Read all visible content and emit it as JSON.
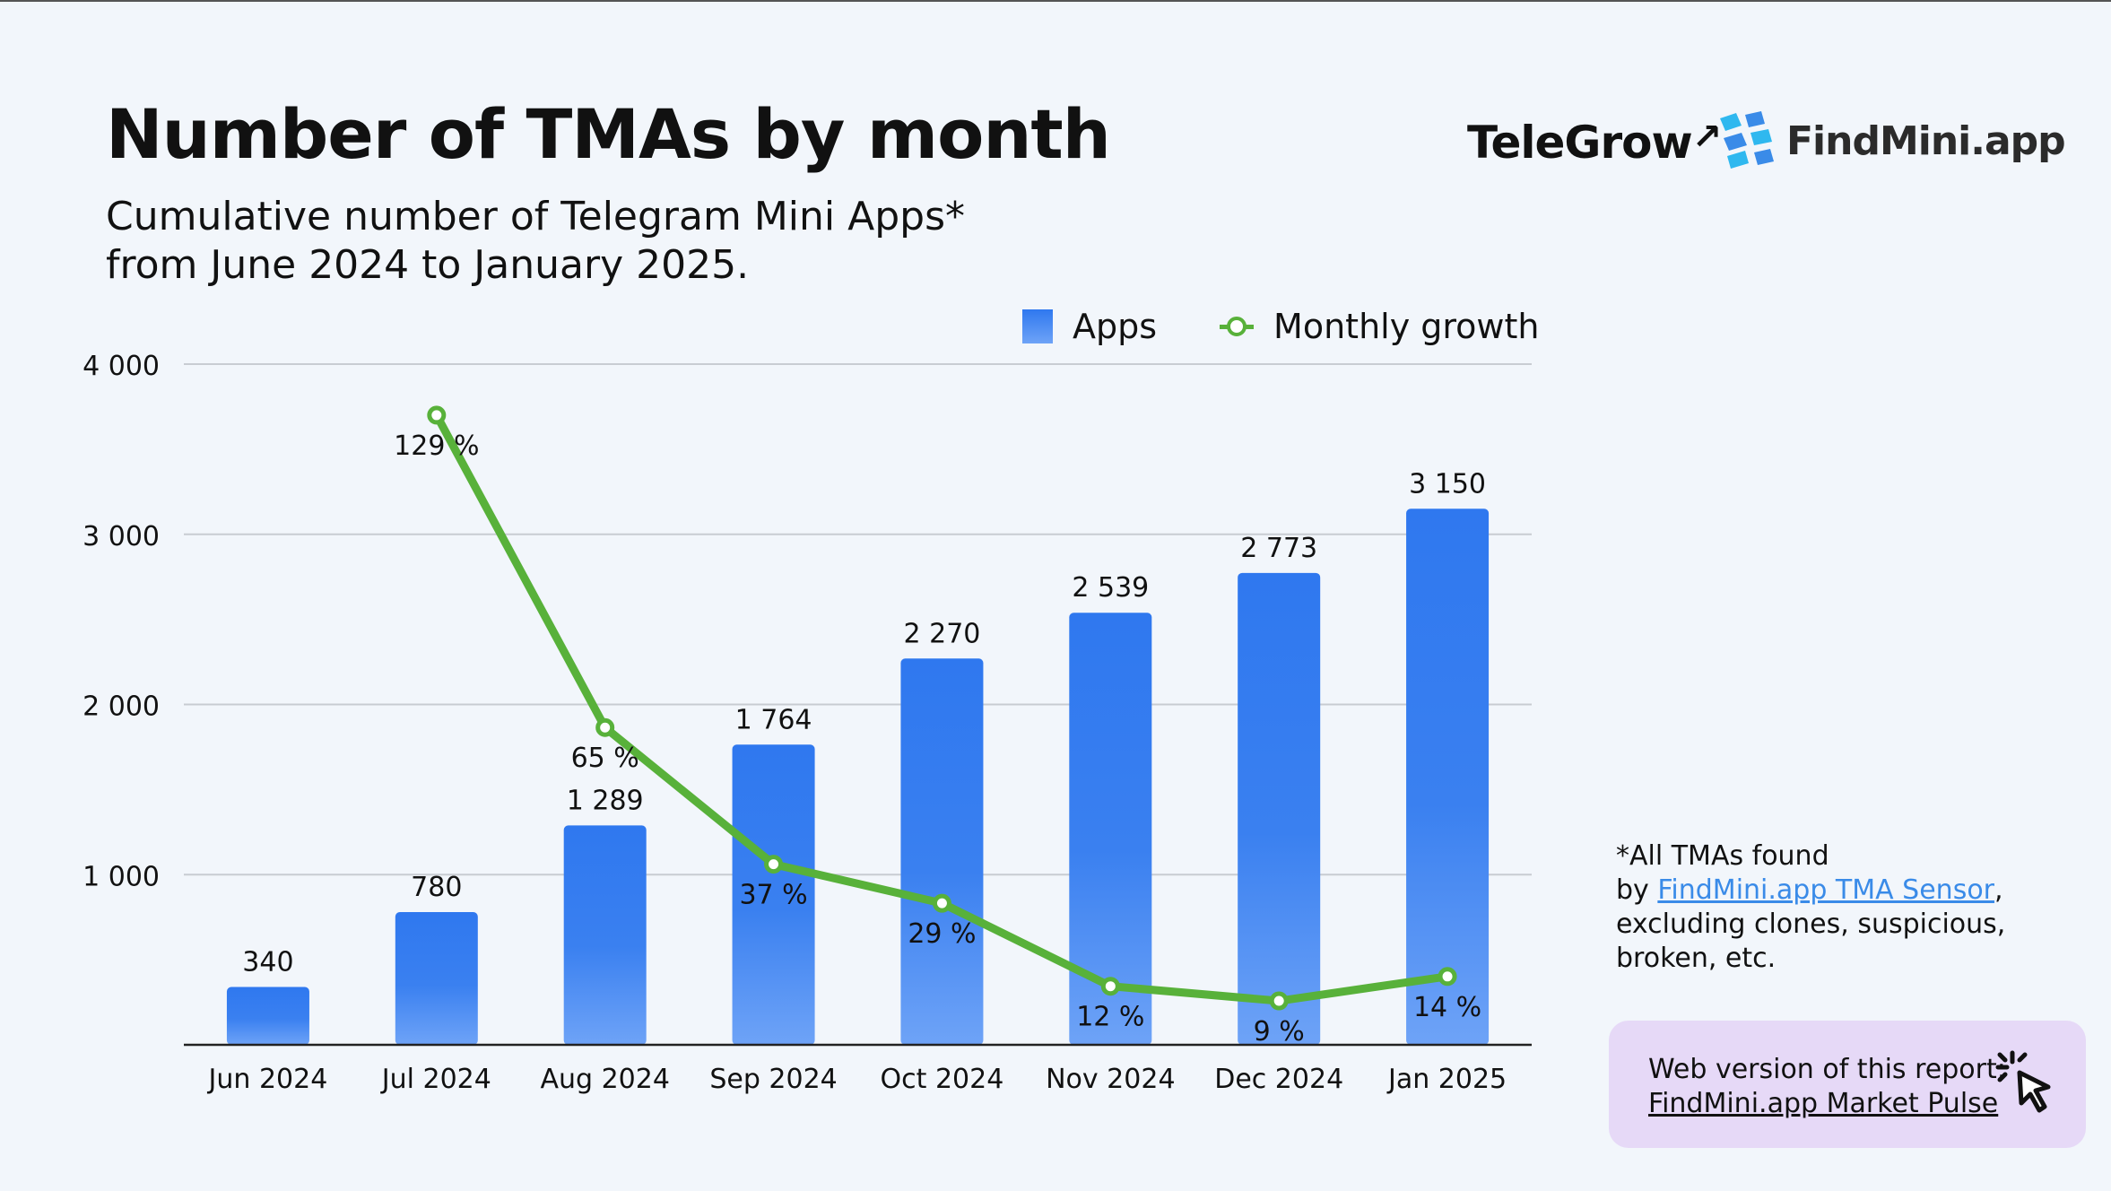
{
  "title": "Number of TMAs by month",
  "subtitle_line1": "Cumulative number of Telegram Mini Apps*",
  "subtitle_line2": "from June 2024 to January 2025.",
  "logos": {
    "telegrow": "TeleGrow",
    "findmini": "FindMini.app"
  },
  "legend": {
    "bars": "Apps",
    "line": "Monthly growth"
  },
  "footnote": {
    "line1": "*All TMAs found",
    "by": "by ",
    "link": "FindMini.app TMA Sensor",
    "after_link": ",",
    "line3": "excluding clones, suspicious,",
    "line4": "broken, etc."
  },
  "web_report": {
    "line1": "Web version of this report:",
    "line2": "FindMini.app Market Pulse"
  },
  "colors": {
    "bar_top": "#2f78ef",
    "bar_bottom": "#6ea3f7",
    "line": "#58b13a",
    "grid": "#c8ccd2",
    "background": "#f2f6fb",
    "web_box": "#e6d9f7"
  },
  "icons": {
    "cursor": "click-cursor-icon",
    "logo_mark": "findmini-logo-icon",
    "arrow": "growth-arrow-icon"
  },
  "chart_data": {
    "type": "bar",
    "categories": [
      "Jun 2024",
      "Jul 2024",
      "Aug 2024",
      "Sep 2024",
      "Oct 2024",
      "Nov 2024",
      "Dec 2024",
      "Jan 2025"
    ],
    "series": [
      {
        "name": "Apps",
        "type": "bar",
        "values": [
          340,
          780,
          1289,
          1764,
          2270,
          2539,
          2773,
          3150
        ],
        "labels": [
          "340",
          "780",
          "1 289",
          "1 764",
          "2 270",
          "2 539",
          "2 773",
          "3 150"
        ]
      },
      {
        "name": "Monthly growth",
        "type": "line",
        "values": [
          null,
          129,
          65,
          37,
          29,
          12,
          9,
          14
        ],
        "labels": [
          "",
          "129 %",
          "65 %",
          "37 %",
          "29 %",
          "12 %",
          "9 %",
          "14 %"
        ]
      }
    ],
    "y_ticks": [
      1000,
      2000,
      3000,
      4000
    ],
    "y_tick_labels": [
      "1 000",
      "2 000",
      "3 000",
      "4 000"
    ],
    "ylim": [
      0,
      4000
    ],
    "grid": true,
    "legend_position": "top-right"
  }
}
